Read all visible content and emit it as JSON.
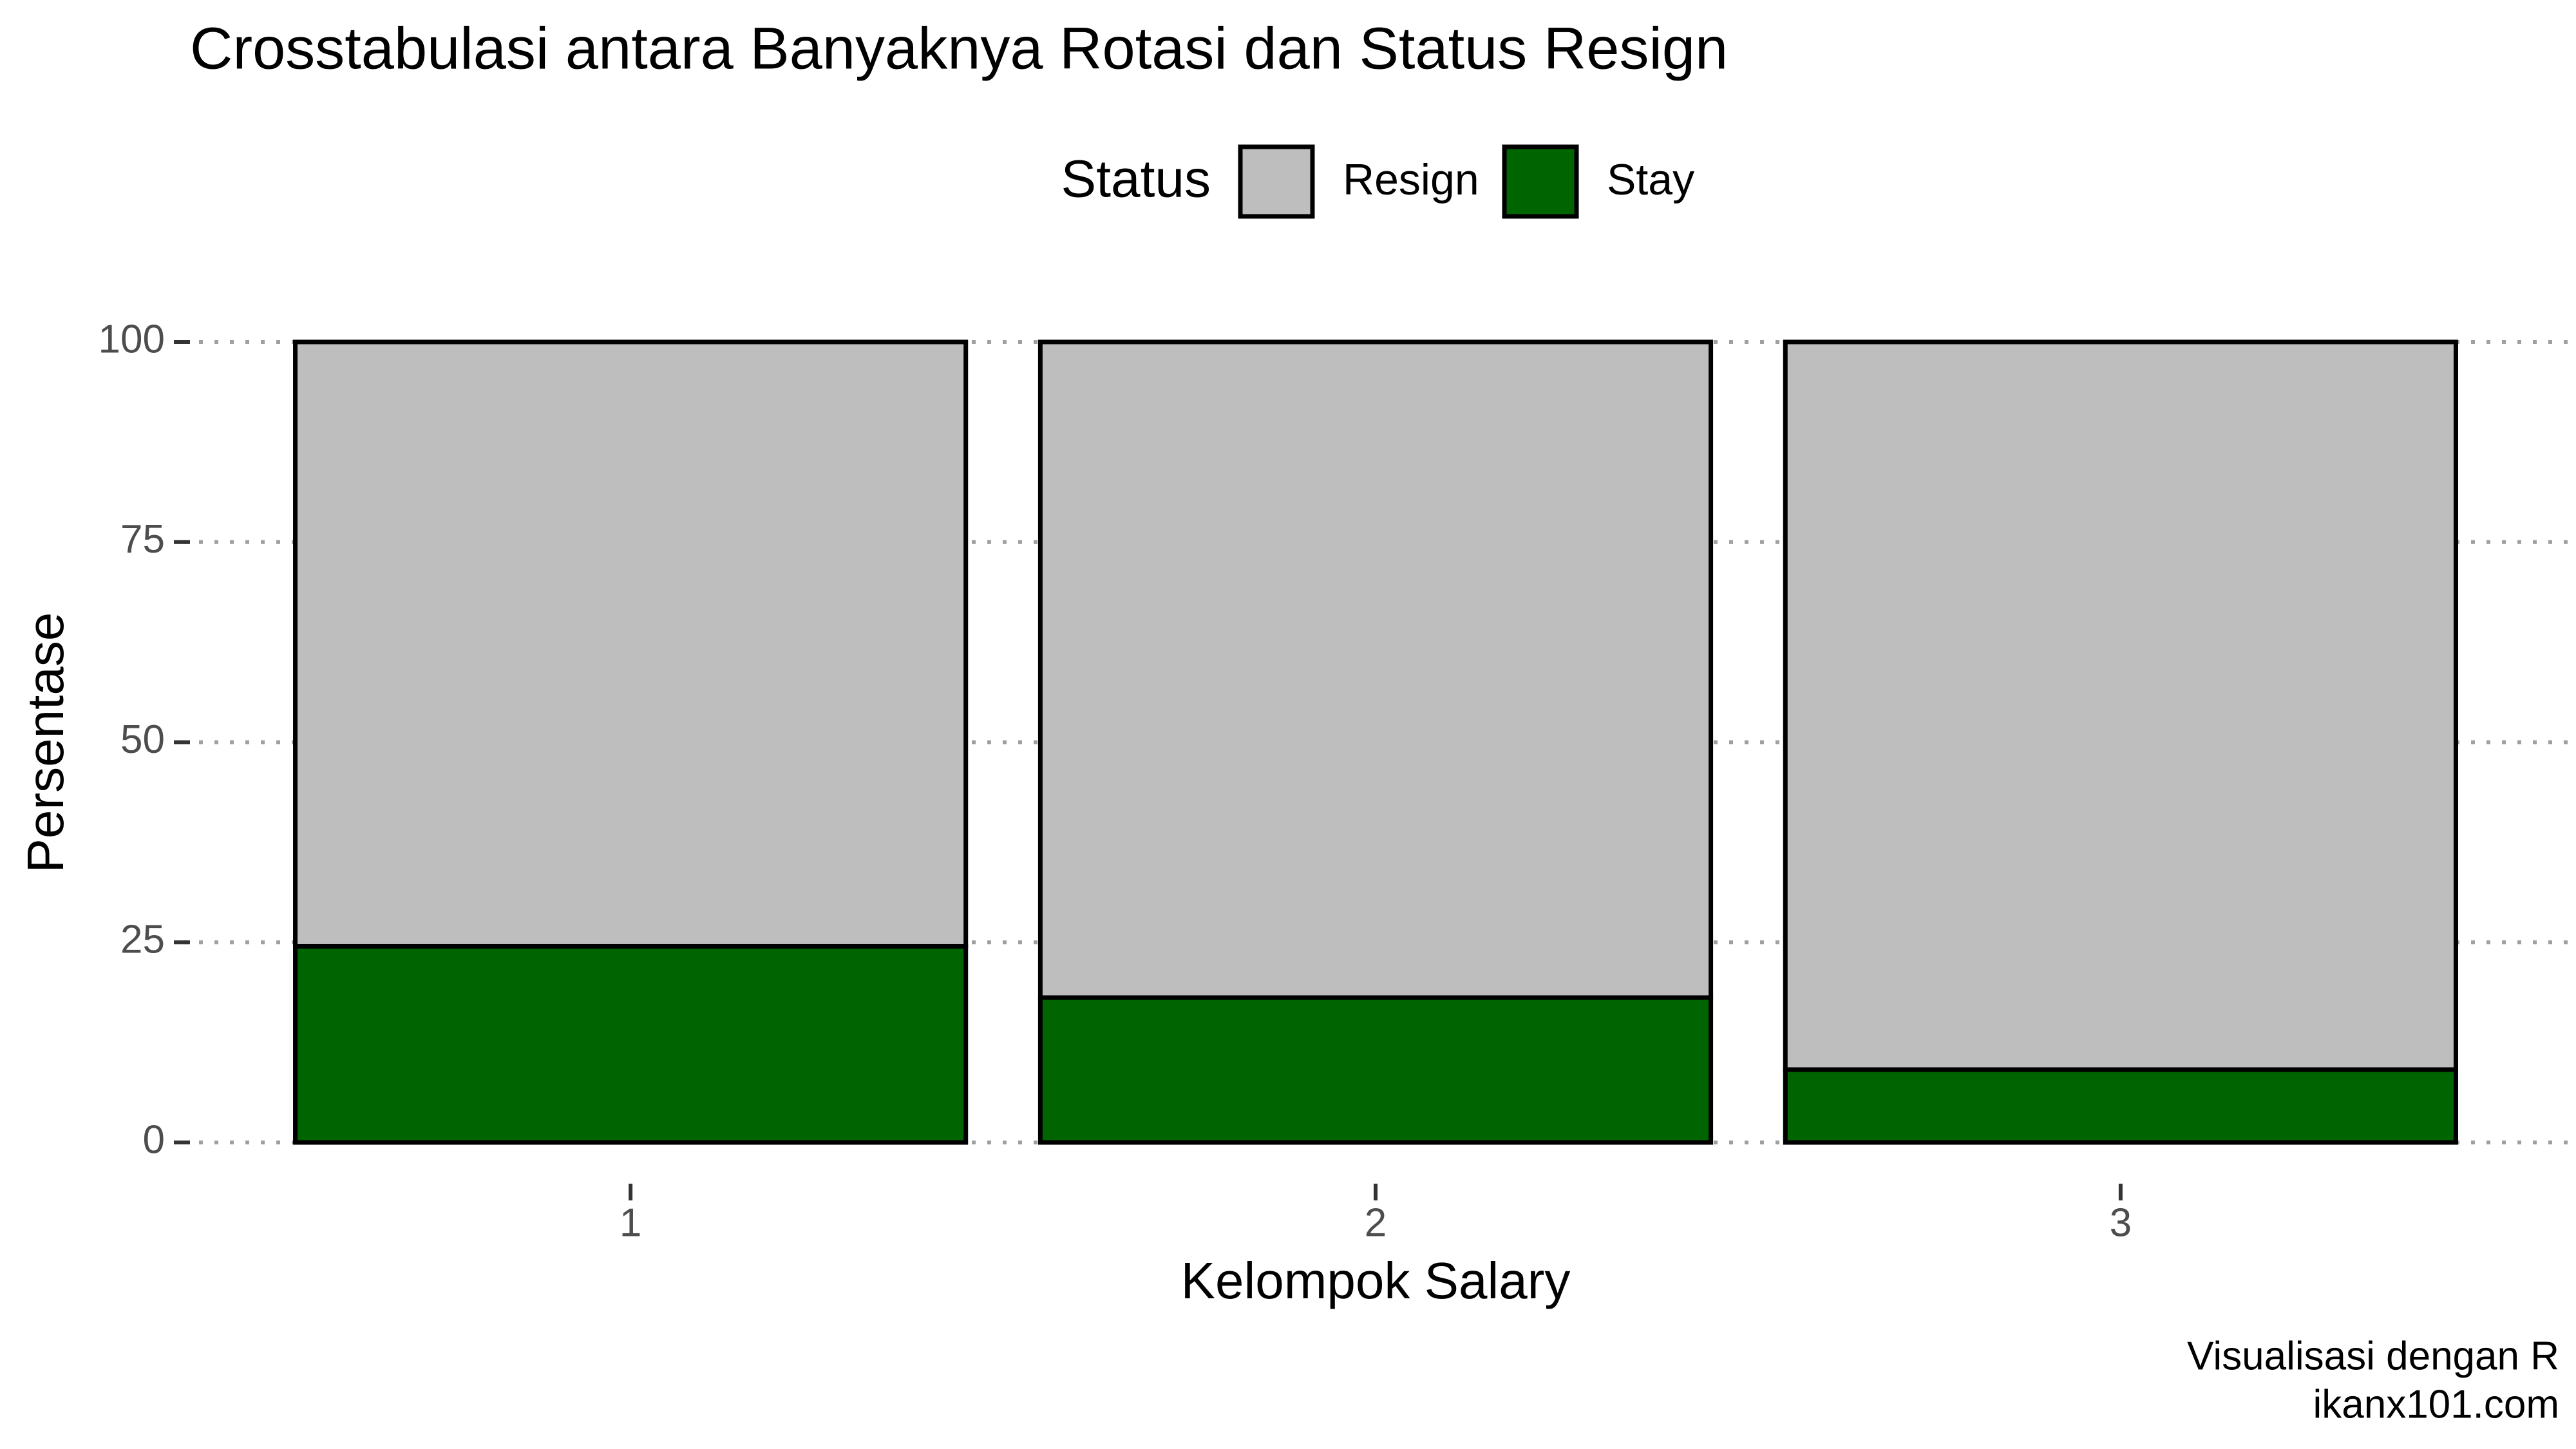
{
  "chart_data": {
    "type": "stacked_bar",
    "title": "Crosstabulasi antara Banyaknya Rotasi dan Status Resign",
    "x_label": "Kelompok Salary",
    "y_label": "Persentase",
    "legend_title": "Status",
    "caption": [
      "Visualisasi dengan R",
      "ikanx101.com"
    ],
    "categories": [
      "1",
      "2",
      "3"
    ],
    "series": [
      {
        "name": "Resign",
        "color": "#bebebe",
        "values": [
          75.5,
          81.9,
          90.9
        ]
      },
      {
        "name": "Stay",
        "color": "#006400",
        "values": [
          24.5,
          18.1,
          9.1
        ]
      }
    ],
    "ylim": [
      0,
      100
    ],
    "yticks": [
      0,
      25,
      50,
      75,
      100
    ],
    "grid": true,
    "legend_position": "top"
  }
}
